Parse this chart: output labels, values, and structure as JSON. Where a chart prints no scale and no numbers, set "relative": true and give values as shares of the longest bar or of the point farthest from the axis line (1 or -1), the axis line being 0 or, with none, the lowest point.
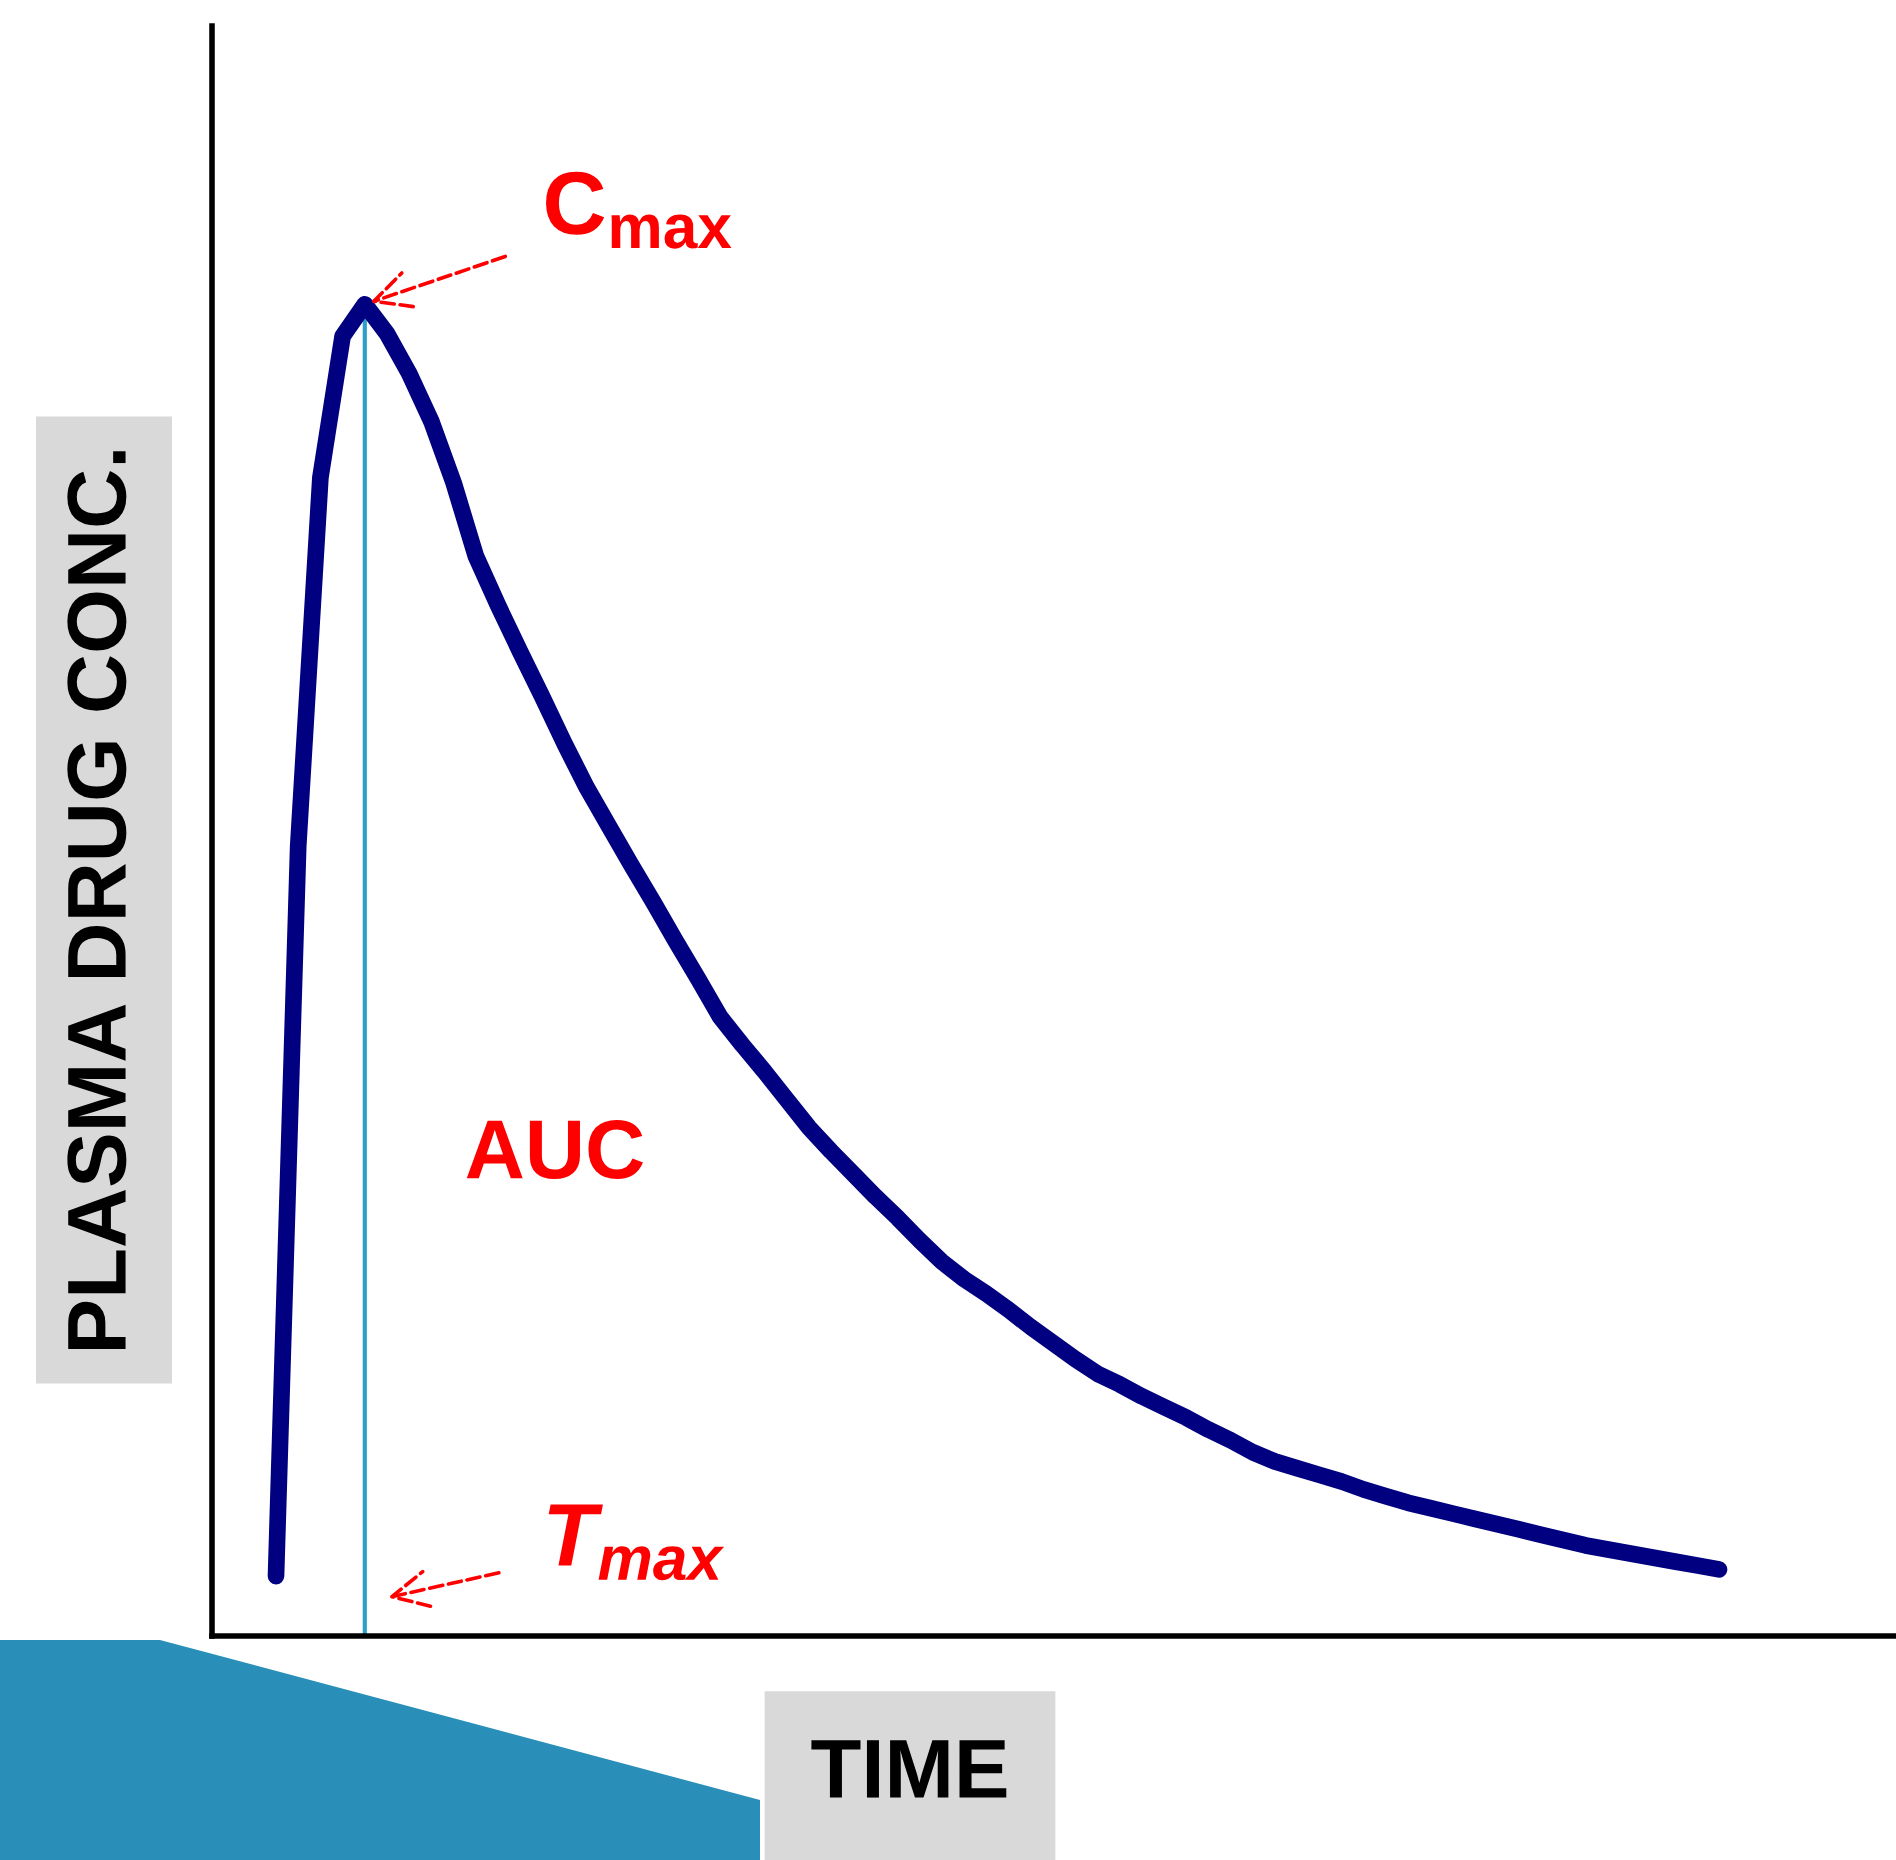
{
  "chart_data": {
    "type": "line",
    "relative": true,
    "xlabel": "TIME",
    "ylabel": "PLASMA DRUG CONC.",
    "categories": [
      null,
      null,
      null,
      null,
      null,
      null,
      null,
      null,
      null,
      null,
      null,
      null,
      null,
      null,
      null,
      null,
      null,
      null,
      null,
      null,
      null,
      null,
      null,
      null,
      null,
      null,
      null,
      null,
      null,
      null,
      null,
      null,
      null,
      null,
      null,
      null,
      null,
      null,
      null,
      null,
      null,
      null,
      null,
      null,
      null,
      null,
      null,
      null,
      null,
      null,
      null,
      null,
      null,
      null,
      null,
      null,
      null,
      null,
      null,
      null,
      null,
      null,
      null,
      null,
      null,
      null
    ],
    "series": [
      {
        "color": "#000080",
        "values": [
          0.045,
          0.593,
          0.87,
          0.976,
          1.0,
          0.978,
          0.948,
          0.912,
          0.866,
          0.811,
          0.774,
          0.739,
          0.705,
          0.67,
          0.637,
          0.608,
          0.579,
          0.551,
          0.522,
          0.494,
          0.465,
          0.444,
          0.424,
          0.403,
          0.382,
          0.364,
          0.347,
          0.33,
          0.314,
          0.297,
          0.281,
          0.268,
          0.257,
          0.245,
          0.232,
          0.22,
          0.208,
          0.197,
          0.189,
          0.18,
          0.172,
          0.164,
          0.155,
          0.147,
          0.138,
          0.131,
          0.126,
          0.121,
          0.116,
          0.11,
          0.105,
          0.1,
          0.096,
          0.092,
          0.088,
          0.084,
          0.08,
          0.076,
          0.072,
          0.068,
          0.065,
          0.062,
          0.059,
          0.056,
          0.053,
          0.05
        ]
      }
    ],
    "annotations": [
      "C$_{max}$",
      "T$_{max}$",
      "AUC"
    ],
    "marker": "none",
    "line_style": "solid"
  }
}
